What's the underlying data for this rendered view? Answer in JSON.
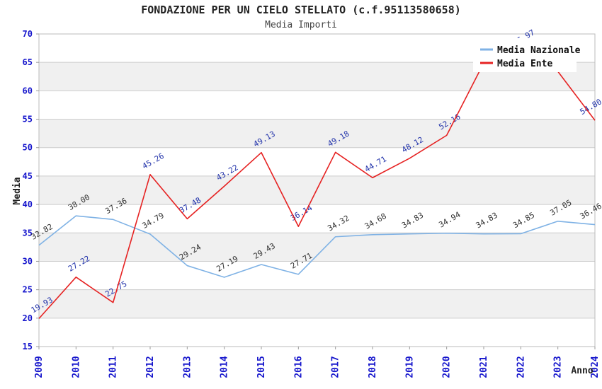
{
  "chart_data": {
    "type": "line",
    "title": "FONDAZIONE PER UN CIELO STELLATO (c.f.95113580658)",
    "subtitle": "Media Importi",
    "xlabel": "Anno",
    "ylabel": "Media",
    "x": [
      "2009",
      "2010",
      "2011",
      "2012",
      "2013",
      "2014",
      "2015",
      "2016",
      "2017",
      "2018",
      "2019",
      "2020",
      "2021",
      "2022",
      "2023",
      "2024"
    ],
    "ylim": [
      15,
      70
    ],
    "ytick_step": 5,
    "grid": "horizontal",
    "bands": "alternating-grey-white",
    "legend_position": "top-right",
    "series": [
      {
        "name": "Media Nazionale",
        "color": "#7fb2e5",
        "label_color": "#333333",
        "values": [
          32.82,
          38.0,
          37.36,
          34.79,
          29.24,
          27.19,
          29.43,
          27.71,
          34.32,
          34.68,
          34.83,
          34.94,
          34.83,
          34.85,
          37.05,
          36.46
        ]
      },
      {
        "name": "Media Ente",
        "color": "#e62222",
        "label_color": "#2233aa",
        "values": [
          19.93,
          27.22,
          22.75,
          45.26,
          37.48,
          43.22,
          49.13,
          36.14,
          49.18,
          44.71,
          48.12,
          52.16,
          64.9,
          66.97,
          63.4,
          54.8
        ]
      }
    ],
    "colors": {
      "band_grey": "#f0f0f0",
      "gridline": "#cccccc",
      "plot_border": "#bbbbbb",
      "tick_label": "#1515cc",
      "legend_bg": "#ffffff"
    }
  }
}
